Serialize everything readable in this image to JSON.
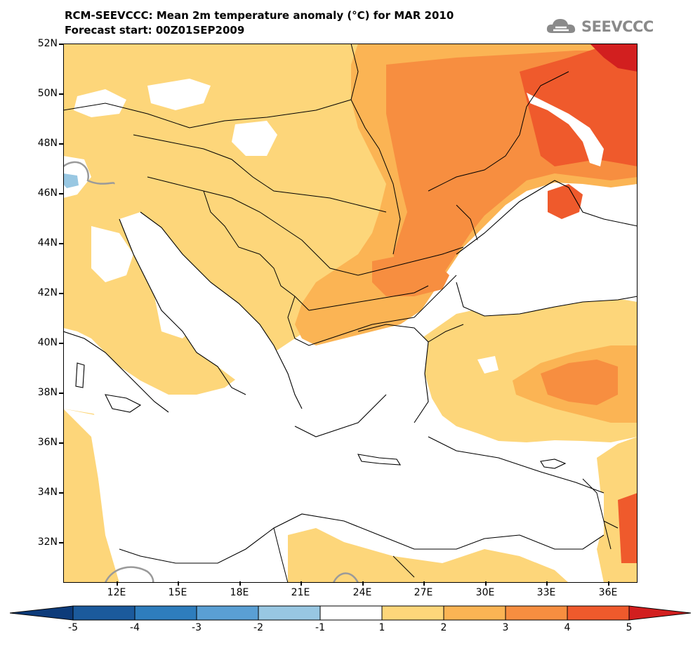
{
  "title": {
    "line1": "RCM-SEEVCCC: Mean 2m temperature anomaly (°C) for MAR 2010",
    "line2": "Forecast start: 00Z01SEP2009"
  },
  "logo": {
    "text": "SEEVCCC",
    "icon": "cloud-icon"
  },
  "map": {
    "region": "Southeastern Europe and Eastern Mediterranean",
    "lat_range": [
      "30.5N",
      "52N"
    ],
    "lon_range": [
      "9E",
      "37E"
    ],
    "variable": "2m temperature anomaly",
    "units": "°C",
    "lat_labels": [
      "52N",
      "50N",
      "48N",
      "46N",
      "44N",
      "42N",
      "40N",
      "38N",
      "36N",
      "34N",
      "32N"
    ],
    "lon_labels": [
      "12E",
      "15E",
      "18E",
      "21E",
      "24E",
      "27E",
      "30E",
      "33E",
      "36E"
    ]
  },
  "colorbar": {
    "labels": [
      "-5",
      "-4",
      "-3",
      "-2",
      "-1",
      "1",
      "2",
      "3",
      "4",
      "5"
    ],
    "colors": [
      "#1b5a9c",
      "#2e7dbd",
      "#5a9fd4",
      "#98c7e2",
      "#ffffff",
      "#fdd67a",
      "#fbb454",
      "#f78e40",
      "#ef5a2c"
    ],
    "under_color": "#0d3b7a",
    "over_color": "#d21f1f"
  }
}
